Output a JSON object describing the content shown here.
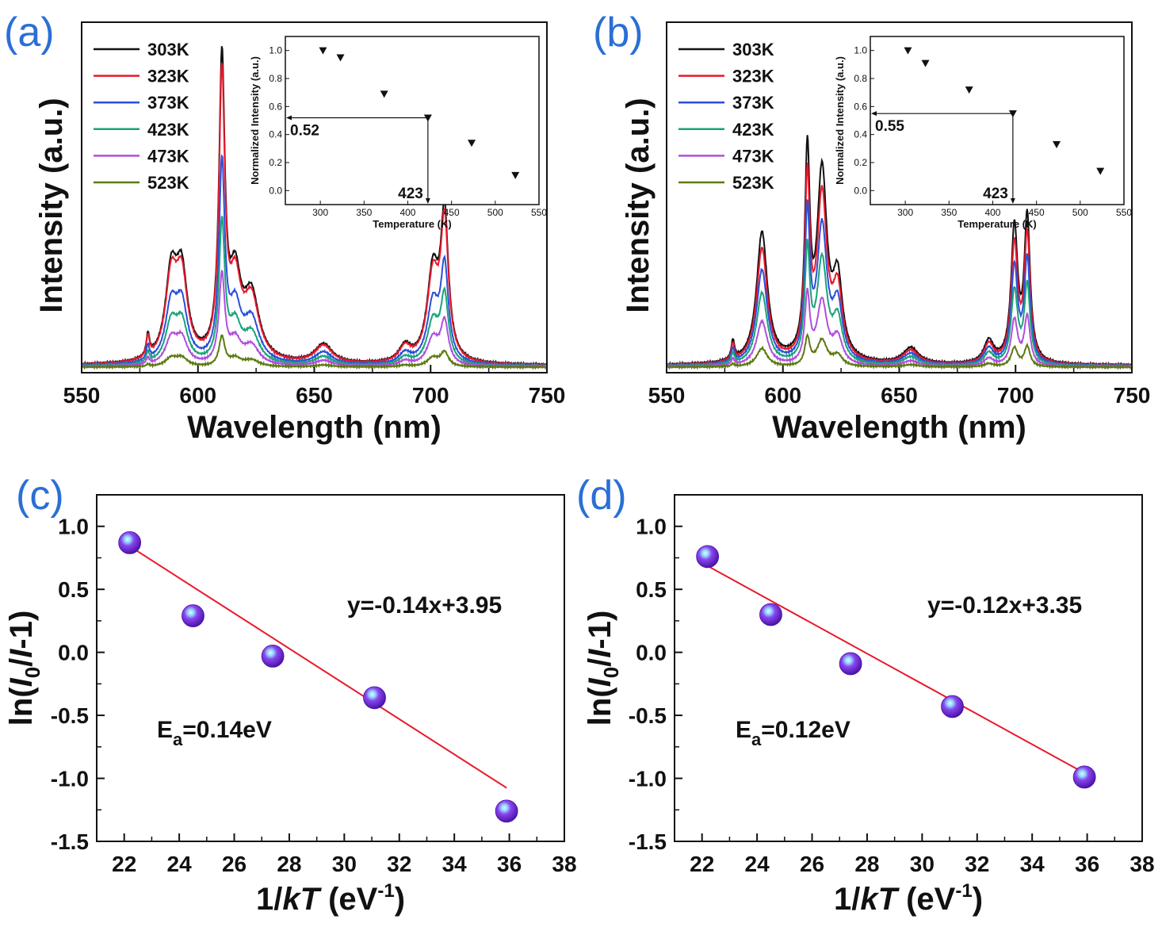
{
  "colors": {
    "panel_letter": "#2a6fd6",
    "series": [
      "#111111",
      "#e8192c",
      "#2b4fd8",
      "#1aa37a",
      "#b04fdc",
      "#5d7a12"
    ],
    "fit_line": "#e8192c",
    "marker": "#7a2ee0"
  },
  "chart_data": [
    {
      "panel": "(a)",
      "type": "line",
      "xlabel": "Wavelength (nm)",
      "ylabel": "Intensity (a.u.)",
      "xlim": [
        550,
        750
      ],
      "xticks": [
        550,
        600,
        650,
        700,
        750
      ],
      "series_names": [
        "303K",
        "323K",
        "373K",
        "423K",
        "473K",
        "523K"
      ],
      "peak_scales": [
        1.0,
        0.95,
        0.66,
        0.47,
        0.3,
        0.1
      ],
      "peaks": [
        {
          "center": 578.5,
          "width": 0.8,
          "height": 0.07
        },
        {
          "center": 588.5,
          "width": 3.0,
          "height": 0.26
        },
        {
          "center": 593.0,
          "width": 3.0,
          "height": 0.26
        },
        {
          "center": 610.3,
          "width": 1.5,
          "height": 0.92
        },
        {
          "center": 616.0,
          "width": 3.0,
          "height": 0.24
        },
        {
          "center": 623.0,
          "width": 4.0,
          "height": 0.2
        },
        {
          "center": 654.0,
          "width": 4.5,
          "height": 0.06
        },
        {
          "center": 689.0,
          "width": 3.0,
          "height": 0.05
        },
        {
          "center": 701.0,
          "width": 3.0,
          "height": 0.28
        },
        {
          "center": 706.0,
          "width": 2.0,
          "height": 0.44
        }
      ],
      "inset": {
        "type": "scatter",
        "xlabel": "Temperature (K)",
        "ylabel": "Normalized Intensity (a.u.)",
        "xlim": [
          260,
          550
        ],
        "ylim": [
          -0.1,
          1.1
        ],
        "xticks": [
          300,
          350,
          400,
          450,
          500,
          550
        ],
        "yticks": [
          "0.0",
          "0.2",
          "0.4",
          "0.6",
          "0.8",
          "1.0"
        ],
        "x": [
          303,
          323,
          373,
          423,
          473,
          523
        ],
        "y": [
          1.0,
          0.95,
          0.69,
          0.52,
          0.34,
          0.11
        ],
        "annotations": {
          "value": "0.52",
          "temperature": "423"
        },
        "marker_value": 0.52,
        "marker_temperature": 423
      }
    },
    {
      "panel": "(b)",
      "type": "line",
      "xlabel": "Wavelength (nm)",
      "ylabel": "Intensity (a.u.)",
      "xlim": [
        550,
        750
      ],
      "xticks": [
        550,
        600,
        650,
        700,
        750
      ],
      "series_names": [
        "303K",
        "323K",
        "373K",
        "423K",
        "473K",
        "523K"
      ],
      "peak_scales": [
        1.0,
        0.88,
        0.72,
        0.55,
        0.34,
        0.14
      ],
      "peaks": [
        {
          "center": 578.5,
          "width": 0.8,
          "height": 0.06
        },
        {
          "center": 591.0,
          "width": 2.8,
          "height": 0.41
        },
        {
          "center": 610.5,
          "width": 1.3,
          "height": 0.62
        },
        {
          "center": 616.8,
          "width": 2.6,
          "height": 0.58
        },
        {
          "center": 623.5,
          "width": 2.5,
          "height": 0.24
        },
        {
          "center": 655.0,
          "width": 4.0,
          "height": 0.05
        },
        {
          "center": 688.5,
          "width": 2.5,
          "height": 0.07
        },
        {
          "center": 699.5,
          "width": 1.7,
          "height": 0.42
        },
        {
          "center": 705.0,
          "width": 1.5,
          "height": 0.45
        }
      ],
      "inset": {
        "type": "scatter",
        "xlabel": "Temperature (K)",
        "ylabel": "Normalized Intensity (a.u.)",
        "xlim": [
          260,
          550
        ],
        "ylim": [
          -0.1,
          1.1
        ],
        "xticks": [
          300,
          350,
          400,
          450,
          500,
          550
        ],
        "yticks": [
          "0.0",
          "0.2",
          "0.4",
          "0.6",
          "0.8",
          "1.0"
        ],
        "x": [
          303,
          323,
          373,
          423,
          473,
          523
        ],
        "y": [
          1.0,
          0.91,
          0.72,
          0.55,
          0.33,
          0.14
        ],
        "annotations": {
          "value": "0.55",
          "temperature": "423"
        },
        "marker_value": 0.55,
        "marker_temperature": 423
      }
    },
    {
      "panel": "(c)",
      "type": "scatter",
      "xlabel": "1/kT (eV⁻¹)",
      "ylabel": "ln(I₀/I-1)",
      "xlim": [
        21,
        38
      ],
      "ylim": [
        -1.5,
        1.25
      ],
      "xticks": [
        22,
        24,
        26,
        28,
        30,
        32,
        34,
        36,
        38
      ],
      "yticks": [
        "-1.5",
        "-1.0",
        "-0.5",
        "0.0",
        "0.5",
        "1.0"
      ],
      "x": [
        22.2,
        24.5,
        27.4,
        31.1,
        35.9
      ],
      "y": [
        0.87,
        0.29,
        -0.03,
        -0.36,
        -1.26
      ],
      "fit": {
        "slope": -0.14,
        "intercept": 3.95
      },
      "equation": "y=-0.14x+3.95",
      "ea_main": "E",
      "ea_sub": "a",
      "ea_value": "=0.14eV"
    },
    {
      "panel": "(d)",
      "type": "scatter",
      "xlabel": "1/kT (eV⁻¹)",
      "ylabel": "ln(I₀/I-1)",
      "xlim": [
        21,
        38
      ],
      "ylim": [
        -1.5,
        1.25
      ],
      "xticks": [
        22,
        24,
        26,
        28,
        30,
        32,
        34,
        36,
        38
      ],
      "yticks": [
        "-1.5",
        "-1.0",
        "-0.5",
        "0.0",
        "0.5",
        "1.0"
      ],
      "x": [
        22.2,
        24.5,
        27.4,
        31.1,
        35.9
      ],
      "y": [
        0.76,
        0.3,
        -0.09,
        -0.43,
        -0.99
      ],
      "fit": {
        "slope": -0.12,
        "intercept": 3.35
      },
      "equation": "y=-0.12x+3.35",
      "ea_main": "E",
      "ea_sub": "a",
      "ea_value": "=0.12eV"
    }
  ],
  "axis_text": {
    "wavelength": "Wavelength (nm)",
    "intensity": "Intensity (a.u.)",
    "inv_kt_prefix": "1/",
    "inv_kt_k": "k",
    "inv_kt_t": "T",
    "inv_kt_unit": " (eV",
    "inv_kt_sup": "-1",
    "inv_kt_close": ")",
    "ln_prefix": "ln(",
    "ln_i": "I",
    "ln_sub": "0",
    "ln_slash": "/",
    "ln_i2": "I",
    "ln_tail": "-1)"
  }
}
